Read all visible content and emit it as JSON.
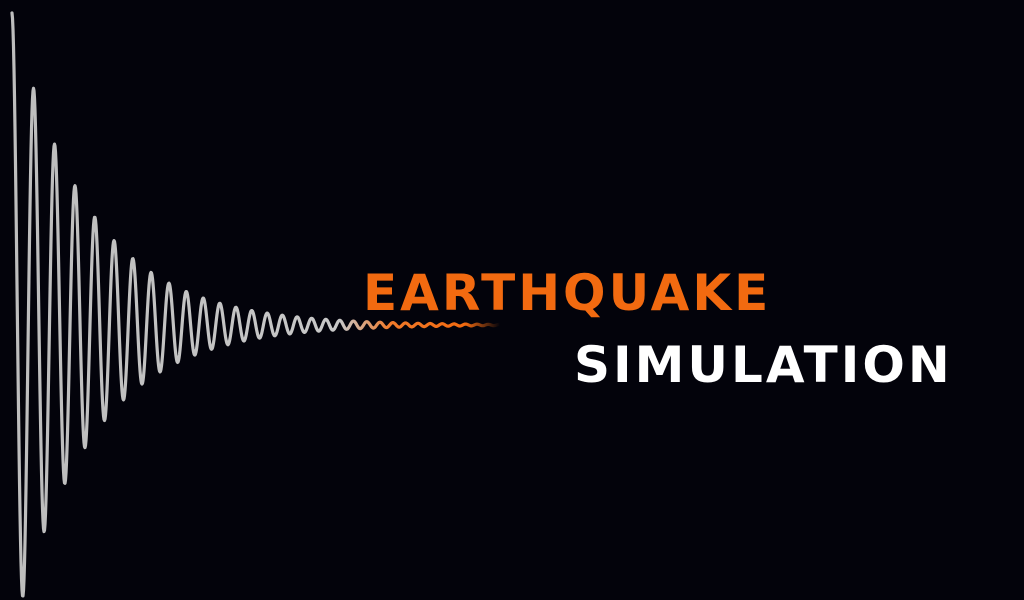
{
  "title": {
    "line1": "EARTHQUAKE",
    "line2": "SIMULATION"
  },
  "colors": {
    "background": "#03030b",
    "accent": "#f26a10",
    "text": "#ffffff",
    "wave": "#b8b8b8"
  },
  "graphic": {
    "icon": "damped-seismic-wave-icon"
  }
}
